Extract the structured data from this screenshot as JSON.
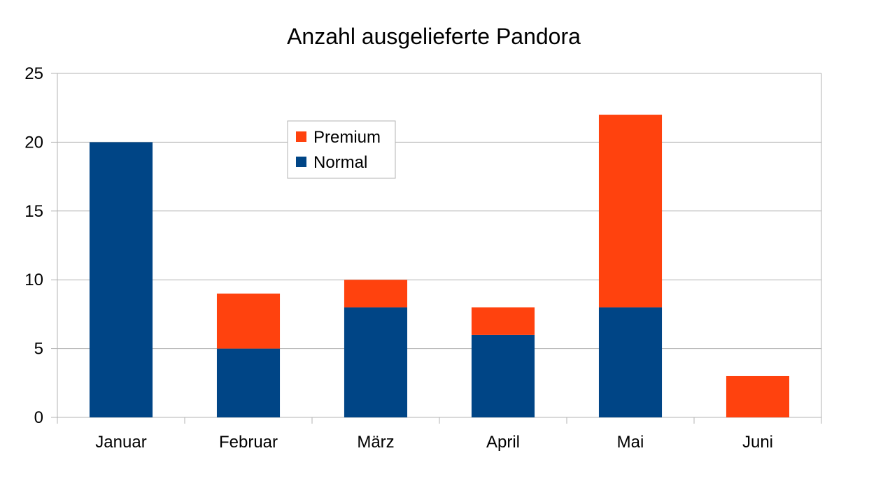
{
  "chart_data": {
    "type": "bar",
    "stacked": true,
    "title": "Anzahl ausgelieferte Pandora",
    "xlabel": "",
    "ylabel": "",
    "categories": [
      "Januar",
      "Februar",
      "März",
      "April",
      "Mai",
      "Juni"
    ],
    "series": [
      {
        "name": "Normal",
        "values": [
          20,
          5,
          8,
          6,
          8,
          0
        ],
        "color": "#004586"
      },
      {
        "name": "Premium",
        "values": [
          0,
          4,
          2,
          2,
          14,
          3
        ],
        "color": "#ff420e"
      }
    ],
    "ylim": [
      0,
      25
    ],
    "yticks": [
      0,
      5,
      10,
      15,
      20,
      25
    ],
    "grid": true,
    "legend": {
      "placement": "inside-top-center",
      "entries": [
        {
          "label": "Premium",
          "color": "#ff420e"
        },
        {
          "label": "Normal",
          "color": "#004586"
        }
      ]
    }
  }
}
